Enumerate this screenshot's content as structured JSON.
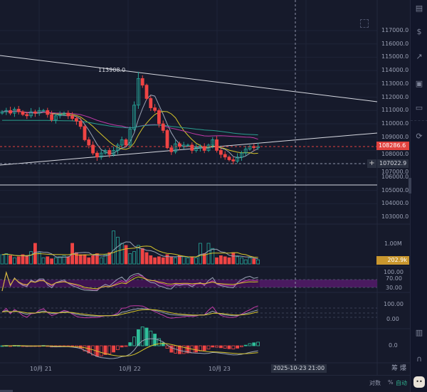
{
  "price_axis": {
    "labels": [
      "117000.0",
      "116000.0",
      "115000.0",
      "114000.0",
      "113000.0",
      "112000.0",
      "111000.0",
      "110000.0",
      "109000.0",
      "108000.0",
      "107000.0",
      "106000.0",
      "105000.0",
      "104000.0",
      "103000.0"
    ],
    "current_price": "108286.6",
    "crosshair_price": "107022.9"
  },
  "high_marker": "113908.0",
  "volume_axis": {
    "label": "1.00M",
    "current": "202.9k"
  },
  "rsi_axis": {
    "labels": [
      "100.00",
      "70.00",
      "30.00"
    ]
  },
  "kdj_axis": {
    "labels": [
      "100.00",
      "0.00"
    ]
  },
  "macd_axis": {
    "labels": [
      "0.0"
    ]
  },
  "time_axis": {
    "labels": [
      "10月 21",
      "10月 22",
      "10月 23"
    ],
    "crosshair_time": "2025-10-23 21:00"
  },
  "footer": {
    "chips": "筹",
    "burst": "爆",
    "log": "对数",
    "percent": "%",
    "auto": "自动"
  },
  "sidebar": {
    "icons": [
      "order-book-icon",
      "price-icon",
      "chart-up-icon",
      "indicator-icon",
      "ticker-icon",
      "swap-icon",
      "layout-icon",
      "support-headset-icon",
      "robot-avatar-icon"
    ]
  },
  "colors": {
    "up": "#26a69a",
    "down": "#ef4444",
    "bg": "#161a2b",
    "ma1": "#d4c32a",
    "ma2": "#9aa3b5",
    "ma3": "#c23aa8",
    "ma4": "#2a9d8f",
    "current": "#e2433f",
    "volume_tag": "#c9972e",
    "rsi_band": "#3d1450"
  },
  "chart_data": {
    "type": "candlestick",
    "closes": [
      110900,
      111000,
      110800,
      111100,
      110900,
      110700,
      110600,
      110900,
      110800,
      111000,
      111000,
      110700,
      110300,
      110600,
      110700,
      110800,
      110600,
      110400,
      110200,
      109800,
      108800,
      108400,
      107800,
      107500,
      107800,
      108000,
      107700,
      108000,
      108400,
      108800,
      108400,
      109600,
      111400,
      113400,
      112900,
      111900,
      111200,
      111000,
      110000,
      109500,
      108200,
      107900,
      108500,
      108300,
      108400,
      108400,
      108000,
      108200,
      108300,
      108000,
      108400,
      108800,
      108000,
      107700,
      107500,
      107300,
      107200,
      107500,
      107800,
      108100,
      108300,
      108200,
      108286.6
    ],
    "volumes": [
      0.45,
      0.5,
      0.4,
      0.3,
      0.35,
      0.45,
      0.4,
      0.6,
      1.0,
      0.55,
      0.3,
      0.35,
      0.25,
      0.3,
      0.35,
      0.4,
      0.35,
      1.0,
      0.55,
      0.45,
      0.45,
      0.3,
      0.4,
      0.5,
      0.3,
      0.45,
      0.55,
      1.6,
      1.3,
      1.0,
      0.9,
      0.5,
      0.6,
      0.9,
      0.75,
      0.55,
      0.4,
      0.3,
      0.35,
      0.3,
      0.45,
      0.35,
      0.3,
      0.4,
      0.35,
      0.3,
      0.35,
      0.3,
      1.0,
      0.5,
      1.0,
      0.75,
      0.3,
      0.4,
      0.35,
      0.3,
      0.55,
      0.35,
      0.3,
      0.2,
      0.3,
      0.25,
      0.2
    ]
  }
}
